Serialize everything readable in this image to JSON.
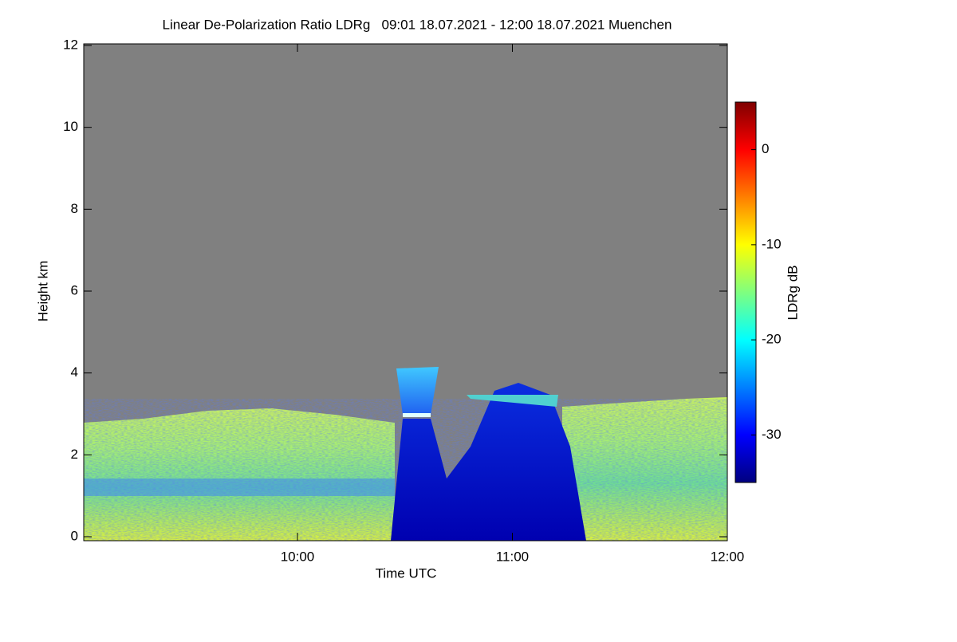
{
  "chart_data": {
    "type": "heatmap",
    "title": "Linear De-Polarization Ratio LDRg   09:01 18.07.2021 - 12:00 18.07.2021 Muenchen",
    "xlabel": "Time UTC",
    "ylabel": "Height km",
    "xlim": [
      "09:01",
      "12:00"
    ],
    "xticks": [
      "10:00",
      "11:00",
      "12:00"
    ],
    "ylim": [
      0,
      12
    ],
    "yticks": [
      0,
      2,
      4,
      6,
      8,
      10,
      12
    ],
    "colorbar": {
      "label": "LDRg dB",
      "clim": [
        -35,
        5
      ],
      "ticks": [
        0,
        -10,
        -20,
        -30
      ],
      "colormap": "jet"
    }
  }
}
